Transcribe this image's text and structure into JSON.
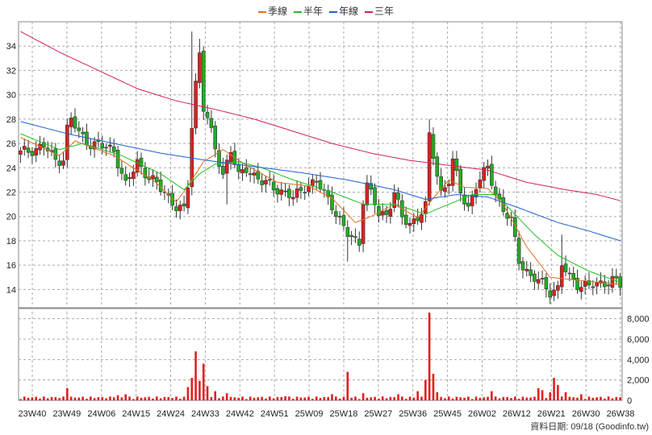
{
  "legend": [
    {
      "name": "季線",
      "color": "#e07020"
    },
    {
      "name": "半年",
      "color": "#20c020"
    },
    {
      "name": "年線",
      "color": "#2060d0"
    },
    {
      "name": "三年",
      "color": "#d02060"
    }
  ],
  "footer": "資料日期: 09/18  (Goodinfo.tw)",
  "chart_data": [
    {
      "type": "candlestick",
      "title": "",
      "grid": true,
      "ylim": [
        12.5,
        36
      ],
      "y_ticks": [
        14,
        16,
        18,
        20,
        22,
        24,
        26,
        28,
        30,
        32,
        34
      ],
      "x_ticks": [
        "23W40",
        "23W49",
        "24W06",
        "24W15",
        "24W24",
        "24W33",
        "24W42",
        "24W51",
        "25W09",
        "25W18",
        "25W27",
        "25W36",
        "25W45",
        "26W02",
        "26W12",
        "26W21",
        "26W30",
        "26W38"
      ],
      "close_keypoints": [
        [
          0,
          25.2
        ],
        [
          6,
          25.8
        ],
        [
          9,
          24.6
        ],
        [
          11,
          24.8
        ],
        [
          12,
          27.2
        ],
        [
          13,
          28.0
        ],
        [
          15,
          26.8
        ],
        [
          18,
          26.0
        ],
        [
          24,
          25.5
        ],
        [
          27,
          22.5
        ],
        [
          30,
          24.5
        ],
        [
          33,
          23.2
        ],
        [
          37,
          22.0
        ],
        [
          40,
          20.8
        ],
        [
          42,
          20.4
        ],
        [
          43,
          22.5
        ],
        [
          44,
          27.5
        ],
        [
          45,
          31.0
        ],
        [
          46,
          33.5
        ],
        [
          47,
          29.0
        ],
        [
          48,
          28.0
        ],
        [
          50,
          25.5
        ],
        [
          52,
          23.5
        ],
        [
          54,
          25.5
        ],
        [
          56,
          23.2
        ],
        [
          58,
          24.0
        ],
        [
          62,
          22.8
        ],
        [
          66,
          22.3
        ],
        [
          70,
          21.5
        ],
        [
          73,
          22.5
        ],
        [
          76,
          22.8
        ],
        [
          80,
          21.0
        ],
        [
          83,
          19.0
        ],
        [
          84,
          18.5
        ],
        [
          86,
          18.0
        ],
        [
          87,
          17.9
        ],
        [
          88,
          21.5
        ],
        [
          89,
          22.6
        ],
        [
          92,
          20.2
        ],
        [
          94,
          20.2
        ],
        [
          96,
          22.0
        ],
        [
          98,
          19.8
        ],
        [
          100,
          19.4
        ],
        [
          102,
          20.0
        ],
        [
          104,
          20.8
        ],
        [
          105,
          26.5
        ],
        [
          106,
          25.0
        ],
        [
          108,
          22.0
        ],
        [
          110,
          23.0
        ],
        [
          111,
          24.5
        ],
        [
          113,
          22.0
        ],
        [
          115,
          20.8
        ],
        [
          117,
          22.5
        ],
        [
          120,
          24.0
        ],
        [
          122,
          22.0
        ],
        [
          124,
          20.5
        ],
        [
          126,
          19.5
        ],
        [
          128,
          16.5
        ],
        [
          131,
          15.0
        ],
        [
          134,
          14.5
        ],
        [
          136,
          13.9
        ],
        [
          138,
          14.0
        ],
        [
          139,
          16.0
        ],
        [
          141,
          15.0
        ],
        [
          143,
          14.5
        ],
        [
          146,
          14.2
        ],
        [
          149,
          14.5
        ],
        [
          152,
          14.8
        ],
        [
          154,
          14.3
        ]
      ],
      "spikes": {
        "44": 35.2,
        "46": 34.6,
        "105": 28.0,
        "84": 16.3,
        "139": 18.5,
        "136": 12.8,
        "53": 21.0,
        "47": 33.0
      },
      "ma_series": [
        {
          "name": "季線",
          "points": [
            [
              0,
              26.5
            ],
            [
              10,
              25.0
            ],
            [
              14,
              26.2
            ],
            [
              24,
              25.0
            ],
            [
              34,
              23.0
            ],
            [
              40,
              21.2
            ],
            [
              43,
              22.5
            ],
            [
              47,
              24.5
            ],
            [
              52,
              25.5
            ],
            [
              58,
              24.2
            ],
            [
              66,
              22.8
            ],
            [
              74,
              22.5
            ],
            [
              80,
              21.5
            ],
            [
              86,
              19.5
            ],
            [
              90,
              20.0
            ],
            [
              96,
              21.0
            ],
            [
              102,
              19.9
            ],
            [
              106,
              21.5
            ],
            [
              110,
              23.0
            ],
            [
              114,
              22.4
            ],
            [
              120,
              22.3
            ],
            [
              124,
              21.0
            ],
            [
              130,
              17.5
            ],
            [
              136,
              15.0
            ],
            [
              142,
              14.8
            ],
            [
              154,
              14.4
            ]
          ]
        },
        {
          "name": "半年",
          "points": [
            [
              0,
              26.8
            ],
            [
              10,
              25.5
            ],
            [
              16,
              26.0
            ],
            [
              26,
              25.0
            ],
            [
              36,
              23.5
            ],
            [
              42,
              22.2
            ],
            [
              46,
              23.5
            ],
            [
              50,
              24.3
            ],
            [
              56,
              24.5
            ],
            [
              62,
              24.0
            ],
            [
              70,
              23.0
            ],
            [
              80,
              22.0
            ],
            [
              88,
              21.0
            ],
            [
              96,
              21.0
            ],
            [
              104,
              20.2
            ],
            [
              110,
              21.0
            ],
            [
              116,
              21.8
            ],
            [
              122,
              21.8
            ],
            [
              126,
              20.5
            ],
            [
              132,
              18.5
            ],
            [
              138,
              16.8
            ],
            [
              146,
              15.5
            ],
            [
              154,
              14.6
            ]
          ]
        },
        {
          "name": "年線",
          "points": [
            [
              0,
              27.8
            ],
            [
              12,
              26.8
            ],
            [
              24,
              26.0
            ],
            [
              36,
              25.2
            ],
            [
              48,
              24.6
            ],
            [
              60,
              24.1
            ],
            [
              72,
              23.6
            ],
            [
              84,
              23.0
            ],
            [
              96,
              22.2
            ],
            [
              104,
              21.4
            ],
            [
              112,
              21.8
            ],
            [
              120,
              21.6
            ],
            [
              128,
              20.7
            ],
            [
              138,
              19.5
            ],
            [
              146,
              18.8
            ],
            [
              154,
              18.0
            ]
          ]
        },
        {
          "name": "三年",
          "points": [
            [
              0,
              35.2
            ],
            [
              10,
              33.5
            ],
            [
              20,
              32.0
            ],
            [
              30,
              30.5
            ],
            [
              40,
              29.5
            ],
            [
              50,
              28.8
            ],
            [
              60,
              28.0
            ],
            [
              70,
              27.0
            ],
            [
              80,
              26.0
            ],
            [
              90,
              25.2
            ],
            [
              100,
              24.6
            ],
            [
              110,
              24.2
            ],
            [
              120,
              23.8
            ],
            [
              130,
              22.8
            ],
            [
              140,
              22.2
            ],
            [
              148,
              21.8
            ],
            [
              154,
              21.3
            ]
          ]
        }
      ]
    },
    {
      "type": "bar",
      "title": "",
      "ylim": [
        0,
        9000
      ],
      "y_ticks": [
        0,
        2000,
        4000,
        6000,
        8000
      ],
      "base_volume": 250,
      "peaks": {
        "12": 1200,
        "24": 300,
        "25": 500,
        "27": 600,
        "43": 1300,
        "44": 2200,
        "45": 4800,
        "46": 1900,
        "47": 3600,
        "48": 1400,
        "50": 900,
        "53": 700,
        "68": 400,
        "80": 600,
        "84": 2800,
        "88": 700,
        "97": 600,
        "102": 900,
        "104": 2000,
        "105": 8600,
        "106": 2600,
        "107": 800,
        "121": 900,
        "133": 1200,
        "134": 1000,
        "136": 800,
        "137": 2200,
        "138": 1500,
        "140": 800,
        "144": 600
      }
    }
  ]
}
